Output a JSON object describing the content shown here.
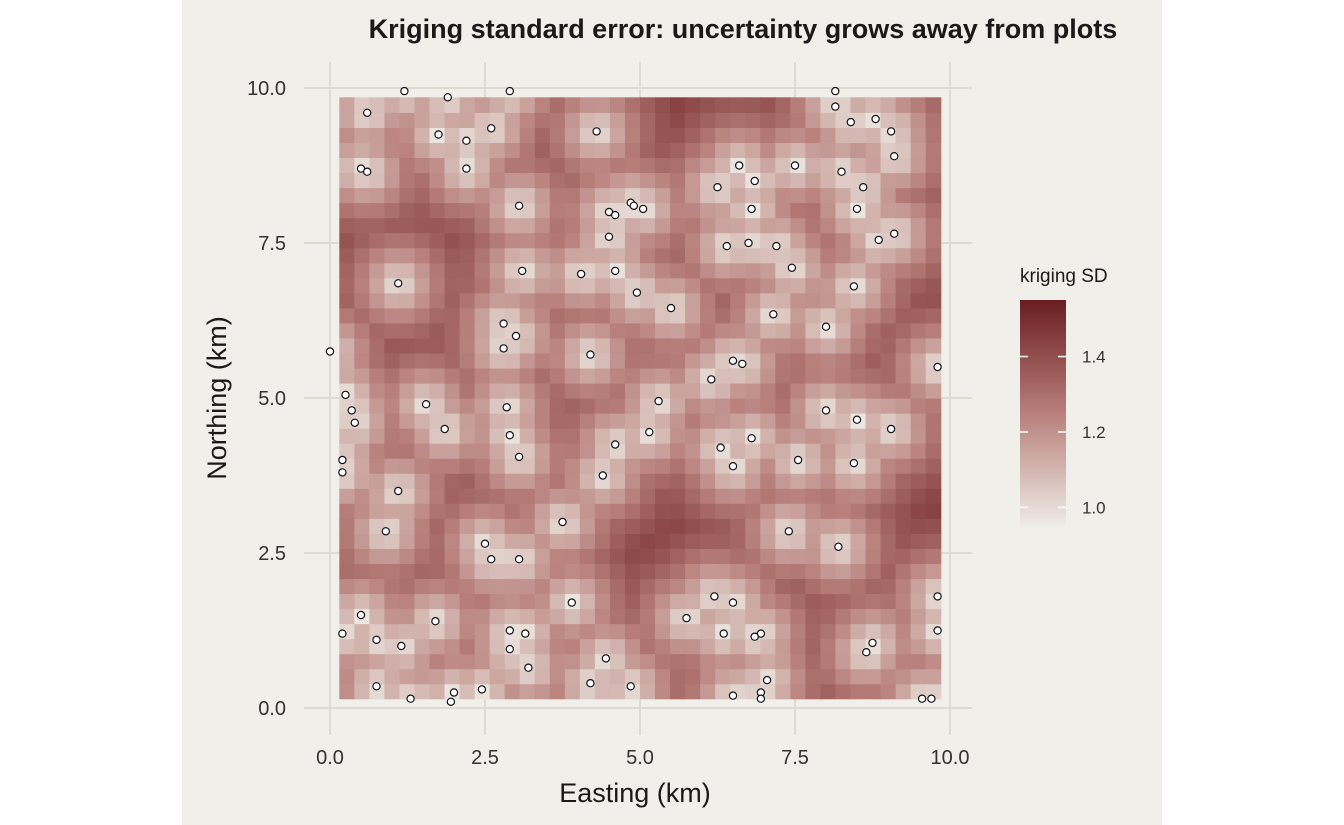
{
  "chart_data": {
    "type": "heatmap",
    "title": "Kriging standard error: uncertainty grows away from plots",
    "xlabel": "Easting (km)",
    "ylabel": "Northing (km)",
    "xlim": [
      0,
      10
    ],
    "ylim": [
      0,
      10
    ],
    "x_ticks": [
      "0.0",
      "2.5",
      "5.0",
      "7.5",
      "10.0"
    ],
    "y_ticks": [
      "0.0",
      "2.5",
      "5.0",
      "7.5",
      "10.0"
    ],
    "grid": true,
    "legend": {
      "title": "kriging SD",
      "position": "right",
      "ticks": [
        "1.0",
        "1.2",
        "1.4"
      ],
      "range": [
        0.94,
        1.55
      ],
      "colors": {
        "low": "#f0efe9",
        "mid": "#b9817c",
        "high": "#6a1e1f"
      }
    },
    "raster": {
      "x_range": [
        0.15,
        9.85
      ],
      "y_range": [
        0.15,
        9.85
      ],
      "nx": 40,
      "ny": 40,
      "note_value": "kriging SD"
    },
    "points": [
      [
        1.2,
        9.95
      ],
      [
        1.9,
        9.85
      ],
      [
        2.9,
        9.95
      ],
      [
        8.15,
        9.95
      ],
      [
        0.6,
        9.6
      ],
      [
        8.15,
        9.7
      ],
      [
        4.3,
        9.3
      ],
      [
        1.75,
        9.25
      ],
      [
        2.2,
        9.15
      ],
      [
        2.6,
        9.35
      ],
      [
        8.4,
        9.45
      ],
      [
        8.8,
        9.5
      ],
      [
        9.05,
        9.3
      ],
      [
        9.1,
        8.9
      ],
      [
        0.5,
        8.7
      ],
      [
        0.6,
        8.65
      ],
      [
        2.2,
        8.7
      ],
      [
        6.6,
        8.75
      ],
      [
        7.5,
        8.75
      ],
      [
        8.25,
        8.65
      ],
      [
        6.85,
        8.5
      ],
      [
        8.6,
        8.4
      ],
      [
        6.25,
        8.4
      ],
      [
        4.85,
        8.15
      ],
      [
        4.9,
        8.1
      ],
      [
        5.05,
        8.05
      ],
      [
        3.05,
        8.1
      ],
      [
        8.5,
        8.05
      ],
      [
        4.5,
        8.0
      ],
      [
        4.6,
        7.95
      ],
      [
        6.8,
        8.05
      ],
      [
        4.5,
        7.6
      ],
      [
        9.1,
        7.65
      ],
      [
        8.85,
        7.55
      ],
      [
        6.4,
        7.45
      ],
      [
        6.75,
        7.5
      ],
      [
        7.2,
        7.45
      ],
      [
        7.45,
        7.1
      ],
      [
        3.1,
        7.05
      ],
      [
        4.05,
        7.0
      ],
      [
        4.6,
        7.05
      ],
      [
        1.1,
        6.85
      ],
      [
        8.45,
        6.8
      ],
      [
        4.95,
        6.7
      ],
      [
        5.5,
        6.45
      ],
      [
        7.15,
        6.35
      ],
      [
        2.8,
        6.2
      ],
      [
        8.0,
        6.15
      ],
      [
        3.0,
        6.0
      ],
      [
        2.8,
        5.8
      ],
      [
        0.0,
        5.75
      ],
      [
        4.2,
        5.7
      ],
      [
        6.5,
        5.6
      ],
      [
        6.65,
        5.55
      ],
      [
        9.8,
        5.5
      ],
      [
        6.15,
        5.3
      ],
      [
        0.25,
        5.05
      ],
      [
        5.3,
        4.95
      ],
      [
        1.55,
        4.9
      ],
      [
        2.85,
        4.85
      ],
      [
        0.35,
        4.8
      ],
      [
        8.0,
        4.8
      ],
      [
        0.4,
        4.6
      ],
      [
        8.5,
        4.65
      ],
      [
        1.85,
        4.5
      ],
      [
        5.15,
        4.45
      ],
      [
        9.05,
        4.5
      ],
      [
        2.9,
        4.4
      ],
      [
        6.8,
        4.35
      ],
      [
        4.6,
        4.25
      ],
      [
        6.3,
        4.2
      ],
      [
        3.05,
        4.05
      ],
      [
        0.2,
        4.0
      ],
      [
        7.55,
        4.0
      ],
      [
        8.45,
        3.95
      ],
      [
        6.5,
        3.9
      ],
      [
        0.2,
        3.8
      ],
      [
        4.4,
        3.75
      ],
      [
        1.1,
        3.5
      ],
      [
        3.75,
        3.0
      ],
      [
        0.9,
        2.85
      ],
      [
        7.4,
        2.85
      ],
      [
        2.5,
        2.65
      ],
      [
        8.2,
        2.6
      ],
      [
        2.6,
        2.4
      ],
      [
        3.05,
        2.4
      ],
      [
        9.8,
        1.8
      ],
      [
        6.2,
        1.8
      ],
      [
        6.5,
        1.7
      ],
      [
        3.9,
        1.7
      ],
      [
        0.5,
        1.5
      ],
      [
        5.75,
        1.45
      ],
      [
        1.7,
        1.4
      ],
      [
        2.9,
        1.25
      ],
      [
        3.15,
        1.2
      ],
      [
        6.35,
        1.2
      ],
      [
        6.95,
        1.2
      ],
      [
        0.2,
        1.2
      ],
      [
        9.8,
        1.25
      ],
      [
        6.85,
        1.15
      ],
      [
        0.75,
        1.1
      ],
      [
        8.75,
        1.05
      ],
      [
        1.15,
        1.0
      ],
      [
        2.9,
        0.95
      ],
      [
        8.65,
        0.9
      ],
      [
        4.45,
        0.8
      ],
      [
        3.2,
        0.65
      ],
      [
        7.05,
        0.45
      ],
      [
        4.2,
        0.4
      ],
      [
        4.85,
        0.35
      ],
      [
        0.75,
        0.35
      ],
      [
        2.45,
        0.3
      ],
      [
        2.0,
        0.25
      ],
      [
        6.95,
        0.25
      ],
      [
        6.5,
        0.2
      ],
      [
        6.95,
        0.15
      ],
      [
        1.3,
        0.15
      ],
      [
        9.55,
        0.15
      ],
      [
        9.7,
        0.15
      ],
      [
        1.95,
        0.1
      ]
    ]
  }
}
